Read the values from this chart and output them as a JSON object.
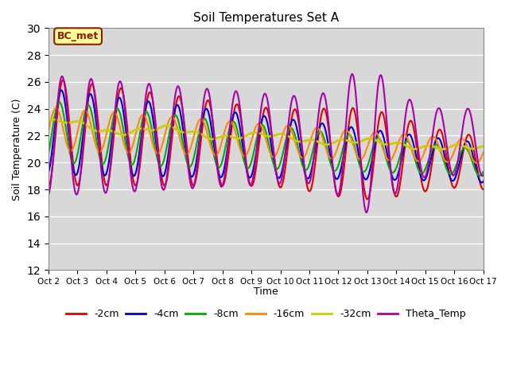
{
  "title": "Soil Temperatures Set A",
  "xlabel": "Time",
  "ylabel": "Soil Temperature (C)",
  "ylim": [
    12,
    30
  ],
  "yticks": [
    12,
    14,
    16,
    18,
    20,
    22,
    24,
    26,
    28,
    30
  ],
  "xtick_labels": [
    "Oct 2",
    "Oct 3",
    "Oct 4",
    "Oct 5",
    "Oct 6",
    "Oct 7",
    "Oct 8",
    "Oct 9",
    "Oct 10",
    "Oct 11",
    "Oct 12",
    "Oct 13",
    "Oct 14",
    "Oct 15",
    "Oct 16",
    "Oct 17"
  ],
  "colors": {
    "-2cm": "#dd0000",
    "-4cm": "#0000cc",
    "-8cm": "#00aa00",
    "-16cm": "#ff8800",
    "-32cm": "#cccc00",
    "Theta_Temp": "#aa00aa"
  },
  "annotation_text": "BC_met",
  "annotation_bg": "#ffff99",
  "annotation_border": "#882200"
}
